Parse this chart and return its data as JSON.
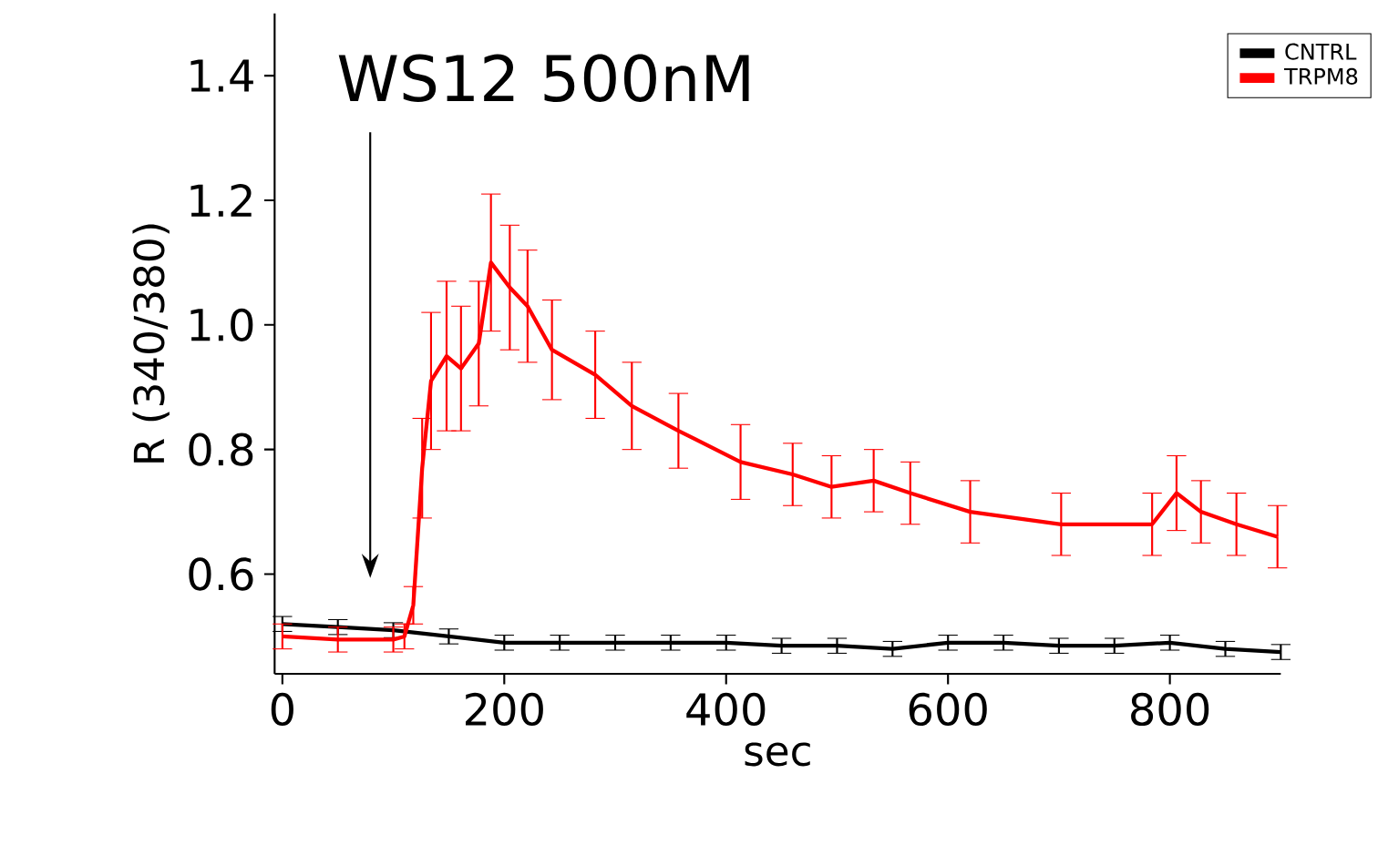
{
  "chart_data": {
    "type": "line",
    "xlabel": "sec",
    "ylabel": "R (340/380)",
    "xlim": [
      -7,
      900
    ],
    "ylim": [
      0.44,
      1.5
    ],
    "xticks": [
      0,
      200,
      400,
      600,
      800
    ],
    "yticks": [
      0.6,
      0.8,
      {
        "value": 1,
        "label": "1.0"
      },
      1.2,
      1.4
    ],
    "legend": "top right",
    "grid": false,
    "annotations": [
      "WS12 500nM"
    ],
    "series": [
      {
        "name": "CNTRL",
        "color": "#000000",
        "x": [
          0,
          50,
          100,
          150,
          200,
          250,
          300,
          350,
          400,
          450,
          500,
          550,
          600,
          650,
          700,
          750,
          800,
          850,
          900
        ],
        "values": [
          0.52,
          0.515,
          0.51,
          0.5,
          0.49,
          0.49,
          0.49,
          0.49,
          0.49,
          0.485,
          0.485,
          0.48,
          0.49,
          0.49,
          0.485,
          0.485,
          0.49,
          0.48,
          0.475
        ],
        "errors": [
          0.012,
          0.012,
          0.012,
          0.012,
          0.012,
          0.012,
          0.012,
          0.012,
          0.012,
          0.012,
          0.012,
          0.012,
          0.012,
          0.012,
          0.012,
          0.012,
          0.012,
          0.012,
          0.012
        ]
      },
      {
        "name": "TRPM8",
        "color": "#ff0000",
        "x": [
          0,
          50,
          100,
          110,
          118,
          126,
          134,
          148,
          161,
          177,
          188,
          205,
          221,
          243,
          282,
          315,
          357,
          413,
          460,
          495,
          533,
          566,
          620,
          702,
          784,
          806,
          828,
          860,
          897
        ],
        "values": [
          0.5,
          0.495,
          0.495,
          0.5,
          0.55,
          0.77,
          0.91,
          0.95,
          0.93,
          0.97,
          1.1,
          1.06,
          1.03,
          0.96,
          0.92,
          0.87,
          0.83,
          0.78,
          0.76,
          0.74,
          0.75,
          0.73,
          0.7,
          0.68,
          0.68,
          0.73,
          0.7,
          0.68,
          0.66
        ],
        "errors": [
          0.02,
          0.02,
          0.02,
          0.02,
          0.03,
          0.08,
          0.11,
          0.12,
          0.1,
          0.1,
          0.11,
          0.1,
          0.09,
          0.08,
          0.07,
          0.07,
          0.06,
          0.06,
          0.05,
          0.05,
          0.05,
          0.05,
          0.05,
          0.05,
          0.05,
          0.06,
          0.05,
          0.05,
          0.05
        ]
      }
    ]
  }
}
